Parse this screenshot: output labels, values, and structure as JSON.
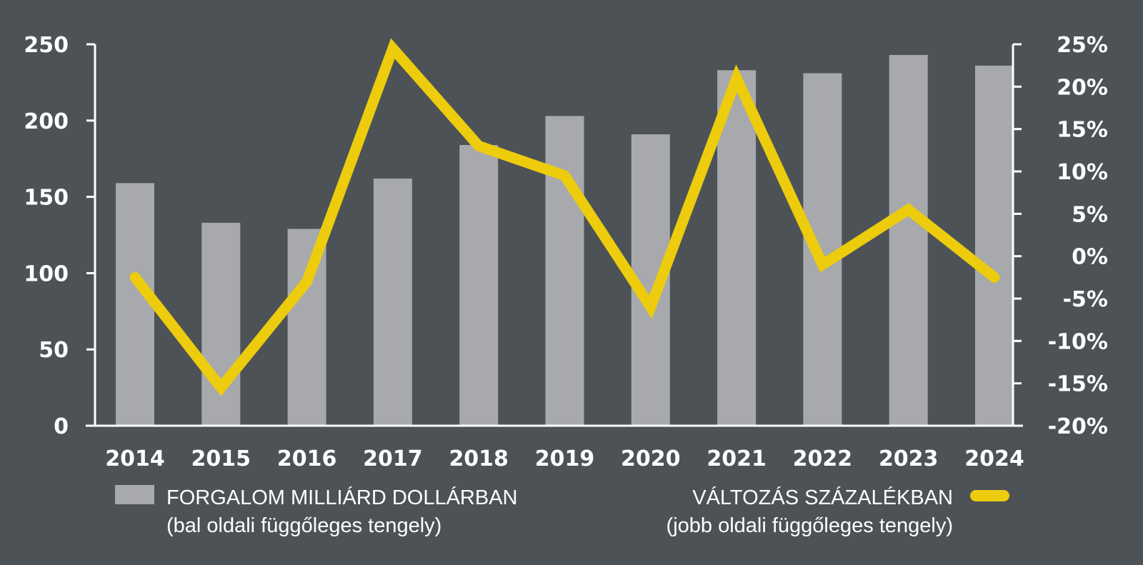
{
  "colors": {
    "background": "#4c5256",
    "bar": "#a7a9ad",
    "line": "#eccc0c",
    "axis": "#ffffff",
    "text": "#ffffff"
  },
  "chart_data": {
    "type": "bar",
    "categories": [
      "2014",
      "2015",
      "2016",
      "2017",
      "2018",
      "2019",
      "2020",
      "2021",
      "2022",
      "2023",
      "2024"
    ],
    "series": [
      {
        "name": "FORGALOM MILLIÁRD DOLLÁRBAN",
        "type": "bar",
        "axis": "left",
        "values": [
          159,
          133,
          129,
          162,
          184,
          203,
          191,
          233,
          231,
          243,
          236
        ]
      },
      {
        "name": "VÁLTOZÁS SZÁZALÉKBAN",
        "type": "line",
        "axis": "right",
        "values": [
          -2.5,
          -15.5,
          -3,
          24.5,
          13,
          9.5,
          -6,
          21,
          -1,
          5.5,
          -2.5
        ]
      }
    ],
    "y_left": {
      "range": [
        0,
        250
      ],
      "ticks": [
        "0",
        "50",
        "100",
        "150",
        "200",
        "250"
      ],
      "tick_values": [
        0,
        50,
        100,
        150,
        200,
        250
      ]
    },
    "y_right": {
      "range": [
        -20,
        25
      ],
      "ticks": [
        "-20%",
        "-15%",
        "-10%",
        "-5%",
        "0%",
        "5%",
        "10%",
        "15%",
        "20%",
        "25%"
      ],
      "tick_values": [
        -20,
        -15,
        -10,
        -5,
        0,
        5,
        10,
        15,
        20,
        25
      ]
    },
    "grid": false,
    "legend": {
      "placement": "bottom",
      "bar_label": "FORGALOM MILLIÁRD DOLLÁRBAN",
      "bar_sublabel": "(bal oldali függőleges tengely)",
      "line_label": "VÁLTOZÁS SZÁZALÉKBAN",
      "line_sublabel": "(jobb oldali függőleges tengely)"
    }
  }
}
